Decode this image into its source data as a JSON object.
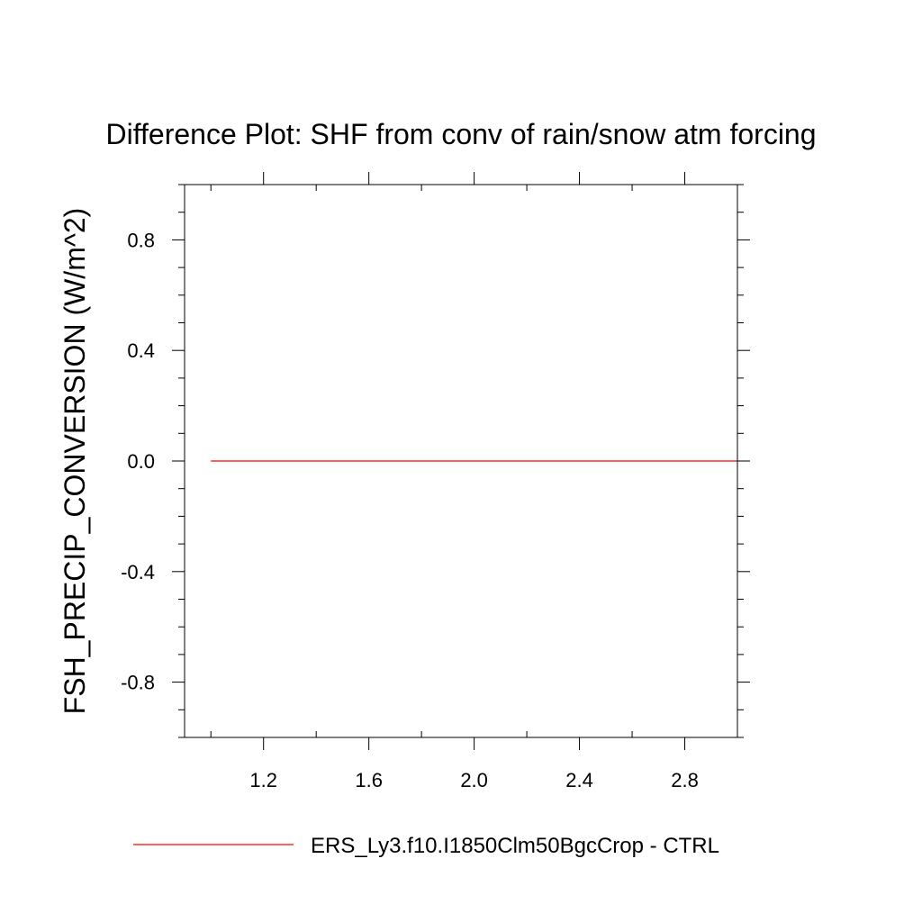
{
  "chart_data": {
    "type": "line",
    "title": "Difference Plot: SHF from conv of rain/snow atm forcing",
    "xlabel": "",
    "ylabel": "FSH_PRECIP_CONVERSION  (W/m^2)",
    "xlim": [
      0.9,
      3.0
    ],
    "ylim": [
      -1.0,
      1.0
    ],
    "x_ticks": [
      1.2,
      1.6,
      2.0,
      2.4,
      2.8
    ],
    "x_tick_labels": [
      "1.2",
      "1.6",
      "2.0",
      "2.4",
      "2.8"
    ],
    "x_minor_ticks": [
      1.0,
      1.4,
      1.8,
      2.2,
      2.6,
      3.0
    ],
    "y_ticks": [
      0.8,
      0.4,
      0.0,
      -0.4,
      -0.8
    ],
    "y_tick_labels": [
      "0.8",
      "0.4",
      "0.0",
      "-0.4",
      "-0.8"
    ],
    "y_minor_ticks": [
      1.0,
      0.9,
      0.7,
      0.6,
      0.5,
      0.3,
      0.2,
      0.1,
      -0.1,
      -0.2,
      -0.3,
      -0.5,
      -0.6,
      -0.7,
      -0.9,
      -1.0
    ],
    "grid": false,
    "legend_position": "bottom",
    "series": [
      {
        "name": "ERS_Ly3.f10.I1850Clm50BgcCrop - CTRL",
        "color": "#ff0000",
        "x": [
          1.0,
          2.0,
          3.0
        ],
        "y": [
          0.0,
          0.0,
          0.0
        ]
      }
    ]
  }
}
